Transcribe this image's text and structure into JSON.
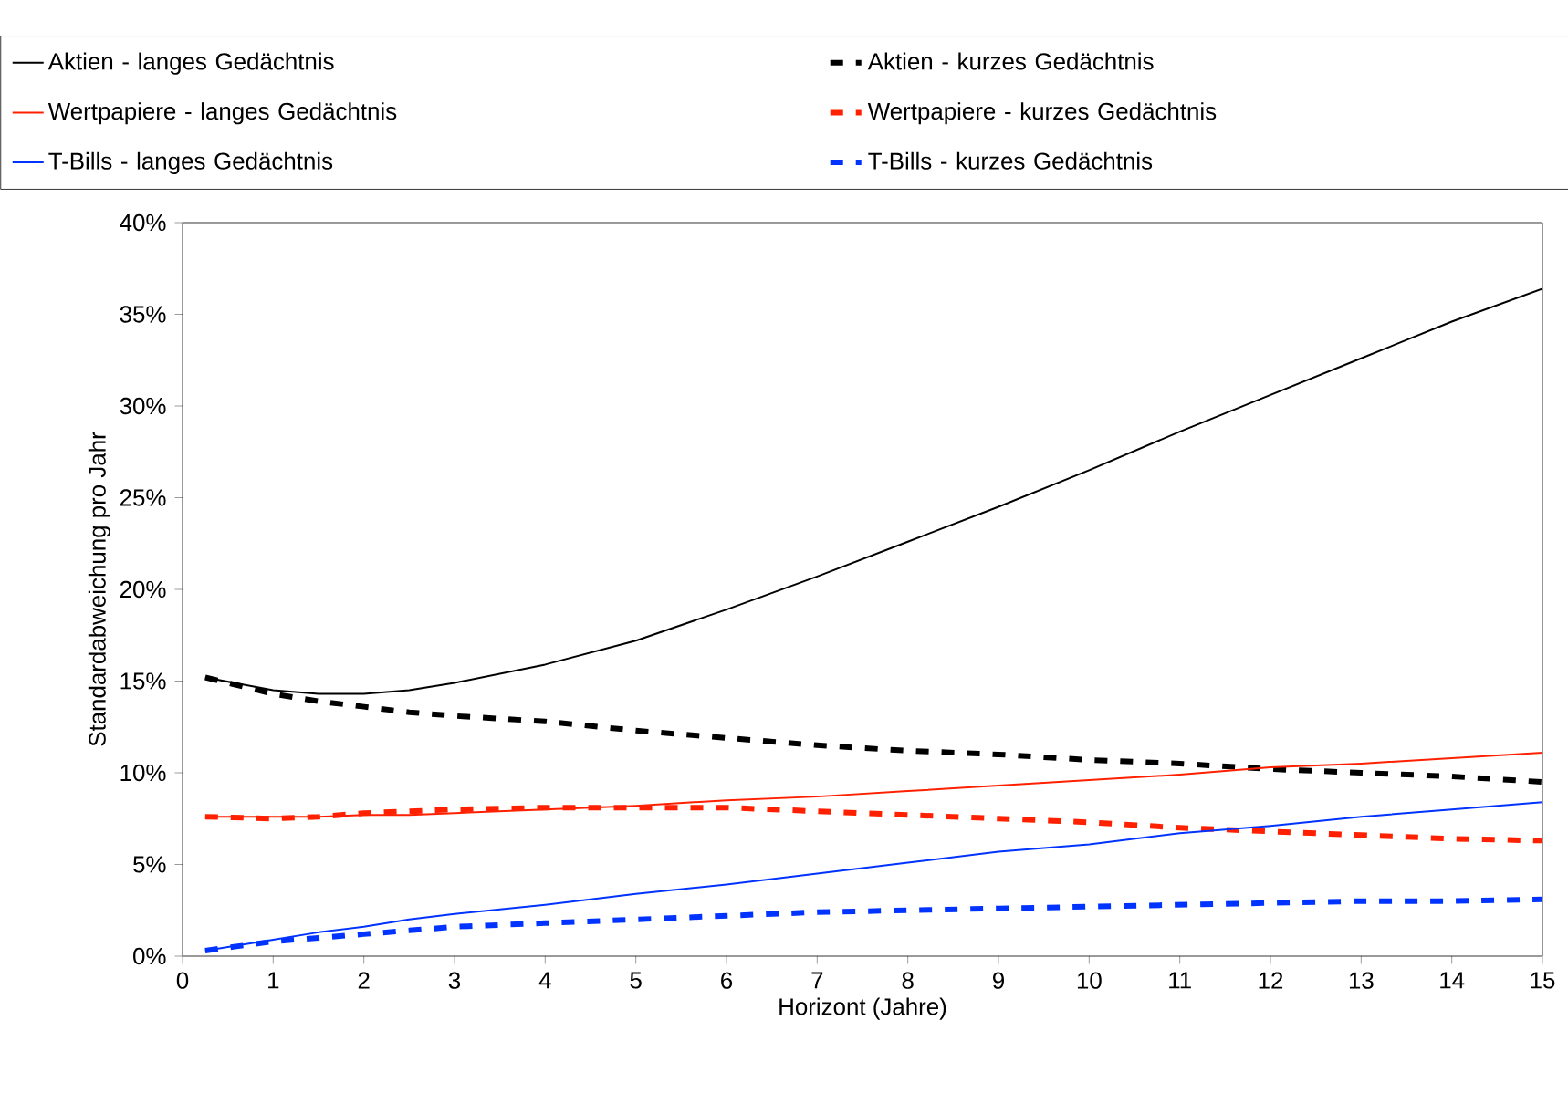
{
  "chart_data": {
    "type": "line",
    "xlabel": "Horizont (Jahre)",
    "ylabel": "Standardabweichung pro Jahr",
    "legend": "top",
    "grid": false,
    "xlim": [
      0,
      15
    ],
    "xticks": [
      0,
      1,
      2,
      3,
      4,
      5,
      6,
      7,
      8,
      9,
      10,
      11,
      12,
      13,
      14,
      15
    ],
    "ylim": [
      0,
      40
    ],
    "yticks": [
      {
        "value": 0,
        "label": "0%"
      },
      {
        "value": 5,
        "label": "5%"
      },
      {
        "value": 10,
        "label": "10%"
      },
      {
        "value": 15,
        "label": "15%"
      },
      {
        "value": 20,
        "label": "20%"
      },
      {
        "value": 25,
        "label": "25%"
      },
      {
        "value": 30,
        "label": "30%"
      },
      {
        "value": 35,
        "label": "35%"
      },
      {
        "value": 40,
        "label": "40%"
      }
    ],
    "x": [
      0.25,
      1,
      1.5,
      2,
      2.5,
      3,
      4,
      5,
      6,
      7,
      8,
      9,
      10,
      11,
      12,
      13,
      14,
      15
    ],
    "series": [
      {
        "name": "Aktien - langes Gedächtnis",
        "color": "#000000",
        "line_style": "solid",
        "values": [
          15.2,
          14.5,
          14.3,
          14.3,
          14.5,
          14.9,
          15.9,
          17.2,
          18.9,
          20.7,
          22.6,
          24.5,
          26.5,
          28.6,
          30.6,
          32.6,
          34.6,
          36.4
        ]
      },
      {
        "name": "Aktien - kurzes Gedächtnis",
        "color": "#000000",
        "line_style": "dashed",
        "values": [
          15.2,
          14.3,
          13.9,
          13.6,
          13.3,
          13.1,
          12.8,
          12.3,
          11.9,
          11.5,
          11.2,
          11.0,
          10.7,
          10.5,
          10.2,
          10.0,
          9.8,
          9.5
        ]
      },
      {
        "name": "Wertpapiere - langes Gedächtnis",
        "color": "#ff2000",
        "line_style": "solid",
        "values": [
          7.6,
          7.6,
          7.6,
          7.7,
          7.7,
          7.8,
          8.0,
          8.2,
          8.5,
          8.7,
          9.0,
          9.3,
          9.6,
          9.9,
          10.3,
          10.5,
          10.8,
          11.1
        ]
      },
      {
        "name": "Wertpapiere - kurzes Gedächtnis",
        "color": "#ff2000",
        "line_style": "dashed",
        "values": [
          7.6,
          7.5,
          7.6,
          7.8,
          7.9,
          8.0,
          8.1,
          8.1,
          8.1,
          7.9,
          7.7,
          7.5,
          7.3,
          7.0,
          6.8,
          6.6,
          6.4,
          6.3
        ]
      },
      {
        "name": "T-Bills - langes Gedächtnis",
        "color": "#0033ff",
        "line_style": "solid",
        "values": [
          0.3,
          0.9,
          1.3,
          1.6,
          2.0,
          2.3,
          2.8,
          3.4,
          3.9,
          4.5,
          5.1,
          5.7,
          6.1,
          6.7,
          7.1,
          7.6,
          8.0,
          8.4
        ]
      },
      {
        "name": "T-Bills - kurzes Gedächtnis",
        "color": "#0033ff",
        "line_style": "dashed",
        "values": [
          0.3,
          0.8,
          1.0,
          1.2,
          1.4,
          1.6,
          1.8,
          2.0,
          2.2,
          2.4,
          2.5,
          2.6,
          2.7,
          2.8,
          2.9,
          3.0,
          3.0,
          3.1
        ]
      }
    ]
  }
}
